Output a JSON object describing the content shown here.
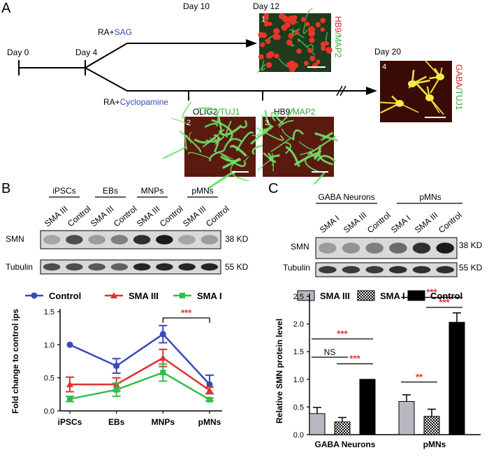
{
  "panel_a": {
    "letter": "A",
    "day0": "Day 0",
    "day4": "Day 4",
    "day10": "Day 10",
    "day12": "Day 12",
    "day20": "Day 20",
    "branch_top_prefix": "RA+",
    "branch_top_agent": "SAG",
    "branch_bottom_prefix": "RA+",
    "branch_bottom_agent": "Cyclopamine",
    "images": [
      {
        "index": "1",
        "stain_red": "HB9",
        "sep": "/",
        "stain_green": "MAP2"
      },
      {
        "index": "2",
        "stain_a": "OLIG2",
        "sep": "/",
        "stain_b": "TUJ1"
      },
      {
        "index": "3",
        "stain_a": "HB9",
        "sep": "/",
        "stain_b": "MAP2"
      },
      {
        "index": "4",
        "stain_red": "GABA",
        "sep": "/",
        "stain_green": "TUJ1"
      }
    ],
    "colors": {
      "blue_text": "#3a49b8",
      "green_text": "#3aa53a",
      "red_text": "#e02020"
    }
  },
  "panel_b": {
    "letter": "B",
    "groups": [
      "iPSCs",
      "EBs",
      "MNPs",
      "pMNs"
    ],
    "lanes": [
      "SMA III",
      "Control",
      "SMA III",
      "Control",
      "SMA III",
      "Control",
      "SMA III",
      "Control"
    ],
    "blots": [
      {
        "label": "SMN",
        "size": "38 KD"
      },
      {
        "label": "Tubulin",
        "size": "55 KD"
      }
    ]
  },
  "panel_c": {
    "letter": "C",
    "groups": [
      "GABA Neurons",
      "pMNs"
    ],
    "lanes": [
      "SMA I",
      "SMA III",
      "Control",
      "SMA I",
      "SMA III",
      "Control"
    ],
    "blots": [
      {
        "label": "SMN",
        "size": "38 KD"
      },
      {
        "label": "Tubulin",
        "size": "55 KD"
      }
    ]
  },
  "chart_data": [
    {
      "type": "line",
      "panel": "B",
      "categories": [
        "iPSCs",
        "EBs",
        "MNPs",
        "pMNs"
      ],
      "ylabel": "Fold change to control ips",
      "xlabel": "",
      "ylim": [
        0,
        1.5
      ],
      "yticks": [
        "0.0",
        "0.5",
        "1.0",
        "1.5"
      ],
      "series": [
        {
          "name": "Control",
          "color": "#3a49b8",
          "marker": "circle",
          "values": [
            1.0,
            0.68,
            1.16,
            0.4
          ],
          "errors": [
            0.0,
            0.11,
            0.13,
            0.14
          ]
        },
        {
          "name": "SMA III",
          "color": "#e03030",
          "marker": "triangle",
          "values": [
            0.4,
            0.4,
            0.8,
            0.31
          ],
          "errors": [
            0.11,
            0.1,
            0.13,
            0.05
          ]
        },
        {
          "name": "SMA I",
          "color": "#2fbf4a",
          "marker": "square",
          "values": [
            0.18,
            0.32,
            0.58,
            0.17
          ],
          "errors": [
            0.04,
            0.1,
            0.13,
            0.02
          ]
        }
      ],
      "annotations": [
        {
          "text": "***",
          "between": [
            "MNPs",
            "pMNs"
          ]
        }
      ]
    },
    {
      "type": "bar",
      "panel": "C",
      "categories": [
        "GABA Neurons",
        "pMNs"
      ],
      "ylabel": "Relative SMN protein level",
      "xlabel": "",
      "ylim": [
        0,
        2.5
      ],
      "yticks": [
        "0.0",
        "0.5",
        "1.0",
        "1.5",
        "2.0",
        "2.5"
      ],
      "series": [
        {
          "name": "SMA III",
          "fill": "#b8b8c0",
          "pattern": "solid",
          "values": [
            0.38,
            0.6
          ],
          "errors": [
            0.11,
            0.12
          ]
        },
        {
          "name": "SMA I",
          "fill": "#ffffff",
          "pattern": "checker",
          "values": [
            0.23,
            0.33
          ],
          "errors": [
            0.08,
            0.13
          ]
        },
        {
          "name": "Control",
          "fill": "#000000",
          "pattern": "solid",
          "values": [
            1.0,
            2.03
          ],
          "errors": [
            0.0,
            0.17
          ]
        }
      ],
      "annotations": [
        {
          "text": "NS",
          "group": "GABA Neurons",
          "pair": [
            "SMA III",
            "SMA I"
          ]
        },
        {
          "text": "***",
          "group": "GABA Neurons",
          "pair": [
            "SMA III",
            "Control"
          ]
        },
        {
          "text": "***",
          "group": "GABA Neurons",
          "pair": [
            "SMA I",
            "Control"
          ]
        },
        {
          "text": "**",
          "group": "pMNs",
          "pair": [
            "SMA III",
            "SMA I"
          ]
        },
        {
          "text": "***",
          "group": "pMNs",
          "pair": [
            "SMA III",
            "Control"
          ]
        },
        {
          "text": "***",
          "group": "pMNs",
          "pair": [
            "SMA I",
            "Control"
          ]
        }
      ]
    }
  ]
}
